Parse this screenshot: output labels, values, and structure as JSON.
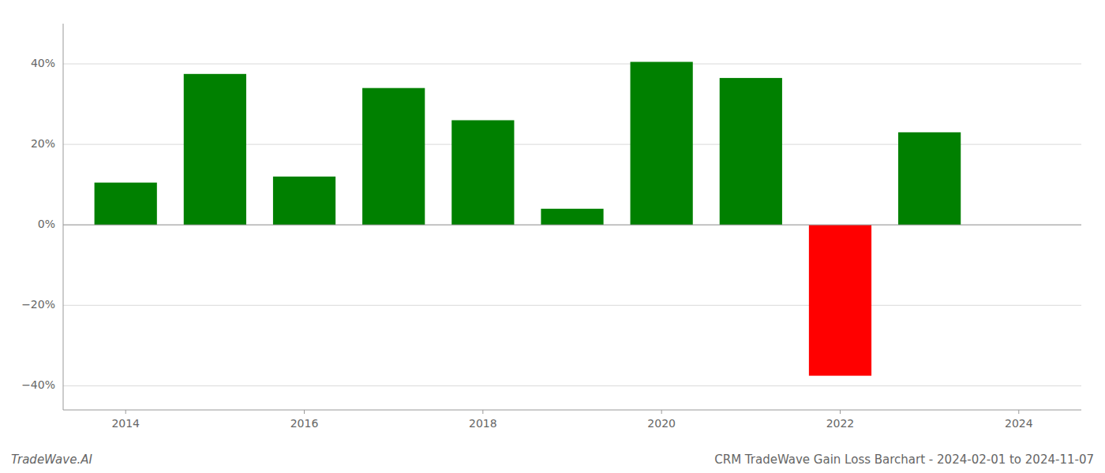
{
  "chart_data": {
    "type": "bar",
    "title": "CRM TradeWave Gain Loss Barchart - 2024-02-01 to 2024-11-07",
    "annotations": [
      "TradeWave.AI"
    ],
    "x": [
      2014,
      2015,
      2016,
      2017,
      2018,
      2019,
      2020,
      2021,
      2022,
      2023
    ],
    "values": [
      0.105,
      0.375,
      0.12,
      0.34,
      0.26,
      0.04,
      0.405,
      0.365,
      -0.375,
      0.23
    ],
    "colors": [
      "#008000",
      "#008000",
      "#008000",
      "#008000",
      "#008000",
      "#008000",
      "#008000",
      "#008000",
      "#ff0000",
      "#008000"
    ],
    "xlim": [
      2013.3,
      2024.7
    ],
    "xticks": [
      2014,
      2016,
      2018,
      2020,
      2022,
      2024
    ],
    "ylim": [
      -0.46,
      0.5
    ],
    "yticks": [
      {
        "value": -0.4,
        "label": "−40%"
      },
      {
        "value": -0.2,
        "label": "−20%"
      },
      {
        "value": 0.0,
        "label": "0%"
      },
      {
        "value": 0.2,
        "label": "20%"
      },
      {
        "value": 0.4,
        "label": "40%"
      }
    ],
    "grid": "y"
  }
}
